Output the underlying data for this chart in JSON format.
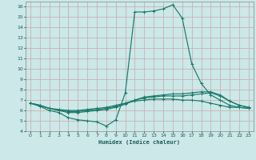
{
  "xlabel": "Humidex (Indice chaleur)",
  "bg_color": "#cce8e8",
  "grid_color": "#b0d0d0",
  "line_color": "#1a7a6a",
  "xlim": [
    -0.5,
    23.5
  ],
  "ylim": [
    4,
    16.5
  ],
  "xticks": [
    0,
    1,
    2,
    3,
    4,
    5,
    6,
    7,
    8,
    9,
    10,
    11,
    12,
    13,
    14,
    15,
    16,
    17,
    18,
    19,
    20,
    21,
    22,
    23
  ],
  "yticks": [
    4,
    5,
    6,
    7,
    8,
    9,
    10,
    11,
    12,
    13,
    14,
    15,
    16
  ],
  "line1_x": [
    0,
    1,
    2,
    3,
    4,
    5,
    6,
    7,
    8,
    9,
    10,
    11,
    12,
    13,
    14,
    15,
    16,
    17,
    18,
    19,
    20,
    21,
    22,
    23
  ],
  "line1_y": [
    6.7,
    6.4,
    6.0,
    5.8,
    5.3,
    5.1,
    5.0,
    4.9,
    4.5,
    5.1,
    7.7,
    15.5,
    15.5,
    15.6,
    15.8,
    16.2,
    14.9,
    10.5,
    8.6,
    7.5,
    7.0,
    6.5,
    6.3,
    6.2
  ],
  "line2_x": [
    0,
    1,
    2,
    3,
    4,
    5,
    6,
    7,
    8,
    9,
    10,
    11,
    12,
    13,
    14,
    15,
    16,
    17,
    18,
    19,
    20,
    21,
    22,
    23
  ],
  "line2_y": [
    6.7,
    6.5,
    6.2,
    6.0,
    5.8,
    5.8,
    5.9,
    6.0,
    6.1,
    6.3,
    6.6,
    7.0,
    7.3,
    7.4,
    7.5,
    7.6,
    7.6,
    7.7,
    7.8,
    7.8,
    7.5,
    6.9,
    6.5,
    6.3
  ],
  "line3_x": [
    0,
    1,
    2,
    3,
    4,
    5,
    6,
    7,
    8,
    9,
    10,
    11,
    12,
    13,
    14,
    15,
    16,
    17,
    18,
    19,
    20,
    21,
    22,
    23
  ],
  "line3_y": [
    6.7,
    6.5,
    6.2,
    6.0,
    5.9,
    5.9,
    6.0,
    6.1,
    6.2,
    6.4,
    6.7,
    7.0,
    7.2,
    7.3,
    7.4,
    7.4,
    7.4,
    7.5,
    7.6,
    7.7,
    7.4,
    6.9,
    6.5,
    6.3
  ],
  "line4_x": [
    0,
    1,
    2,
    3,
    4,
    5,
    6,
    7,
    8,
    9,
    10,
    11,
    12,
    13,
    14,
    15,
    16,
    17,
    18,
    19,
    20,
    21,
    22,
    23
  ],
  "line4_y": [
    6.7,
    6.5,
    6.2,
    6.1,
    6.0,
    6.0,
    6.1,
    6.2,
    6.3,
    6.5,
    6.7,
    6.9,
    7.0,
    7.1,
    7.1,
    7.1,
    7.0,
    7.0,
    6.9,
    6.7,
    6.5,
    6.3,
    6.3,
    6.2
  ]
}
